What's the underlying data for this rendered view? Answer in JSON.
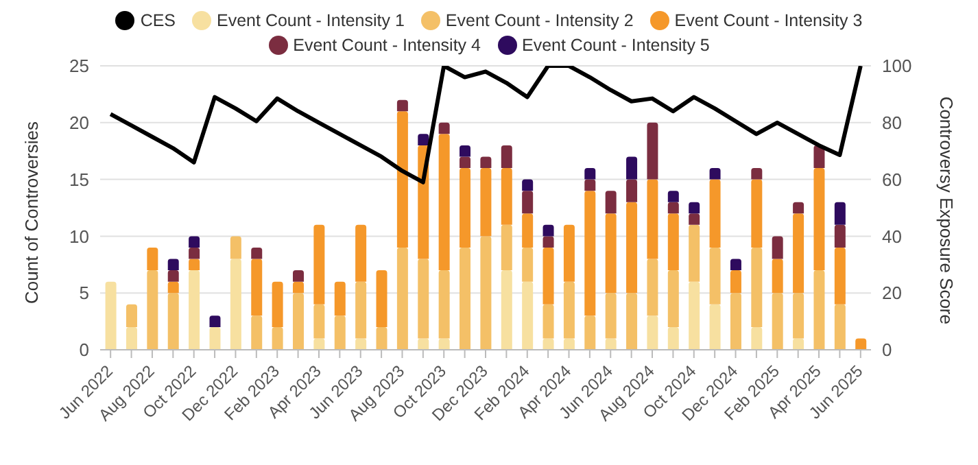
{
  "chart_data": {
    "type": "bar",
    "stacked": true,
    "ylabel": "Count of Controversies",
    "y2label": "Controversy Exposure Score",
    "categories": [
      "Jun 2022",
      null,
      "Aug 2022",
      null,
      "Oct 2022",
      null,
      "Dec 2022",
      null,
      "Feb 2023",
      null,
      "Apr 2023",
      null,
      "Jun 2023",
      null,
      "Aug 2023",
      null,
      "Oct 2023",
      null,
      "Dec 2023",
      null,
      "Feb 2024",
      null,
      "Apr 2024",
      null,
      "Jun 2024",
      null,
      "Aug 2024",
      null,
      "Oct 2024",
      null,
      "Dec 2024",
      null,
      "Feb 2025",
      null,
      "Apr 2025",
      null,
      "Jun 2025"
    ],
    "series": [
      {
        "name": "CES",
        "type": "line",
        "axis": "y2",
        "color": "#000000",
        "marker": "none",
        "line_style": "solid",
        "values": [
          83,
          79,
          75,
          71,
          66,
          89,
          85,
          80.5,
          88.5,
          84,
          80,
          76,
          72,
          68,
          63,
          59,
          100,
          96,
          98,
          94,
          89,
          100,
          100,
          96,
          91.5,
          87.5,
          88.5,
          84,
          89,
          85,
          80.5,
          76,
          80,
          76,
          72,
          68.6,
          100
        ]
      },
      {
        "name": "Event Count - Intensity 1",
        "color": "#f7e0a0",
        "values": [
          6,
          2,
          0,
          0,
          7,
          2,
          8,
          0,
          0,
          0,
          1,
          0,
          1,
          0,
          0,
          1,
          1,
          0,
          0,
          7,
          6,
          1,
          1,
          0,
          1,
          0,
          3,
          2,
          6,
          4,
          0,
          2,
          0,
          1,
          0,
          0,
          0
        ]
      },
      {
        "name": "Event Count - Intensity 2",
        "color": "#f4c067",
        "values": [
          0,
          2,
          7,
          5,
          0,
          0,
          2,
          3,
          2,
          5,
          3,
          3,
          5,
          2,
          9,
          7,
          6,
          9,
          10,
          4,
          3,
          3,
          5,
          3,
          4,
          5,
          5,
          5,
          5,
          5,
          5,
          7,
          5,
          4,
          7,
          4,
          0
        ]
      },
      {
        "name": "Event Count - Intensity 3",
        "color": "#f5982a",
        "values": [
          0,
          0,
          2,
          1,
          1,
          0,
          0,
          5,
          4,
          1,
          7,
          3,
          5,
          5,
          12,
          10,
          12,
          7,
          6,
          5,
          3,
          5,
          5,
          11,
          7,
          8,
          7,
          5,
          0,
          6,
          2,
          6,
          3,
          7,
          9,
          5,
          1
        ]
      },
      {
        "name": "Event Count - Intensity 4",
        "color": "#7b2d40",
        "values": [
          0,
          0,
          0,
          1,
          1,
          0,
          0,
          1,
          0,
          1,
          0,
          0,
          0,
          0,
          1,
          0,
          1,
          1,
          1,
          2,
          2,
          1,
          0,
          1,
          2,
          2,
          5,
          1,
          1,
          0,
          0,
          1,
          2,
          1,
          2,
          2,
          0
        ]
      },
      {
        "name": "Event Count - Intensity 5",
        "color": "#2e0b5e",
        "values": [
          0,
          0,
          0,
          1,
          1,
          1,
          0,
          0,
          0,
          0,
          0,
          0,
          0,
          0,
          0,
          1,
          0,
          1,
          0,
          0,
          1,
          1,
          0,
          1,
          0,
          2,
          0,
          1,
          1,
          1,
          1,
          0,
          0,
          0,
          0,
          2,
          0
        ]
      }
    ],
    "ylim": [
      0,
      25
    ],
    "yticks": [
      0,
      5,
      10,
      15,
      20,
      25
    ],
    "y2lim": [
      0,
      100
    ],
    "y2ticks": [
      0,
      20,
      40,
      60,
      80,
      100
    ],
    "grid": "y",
    "legend": "top"
  }
}
